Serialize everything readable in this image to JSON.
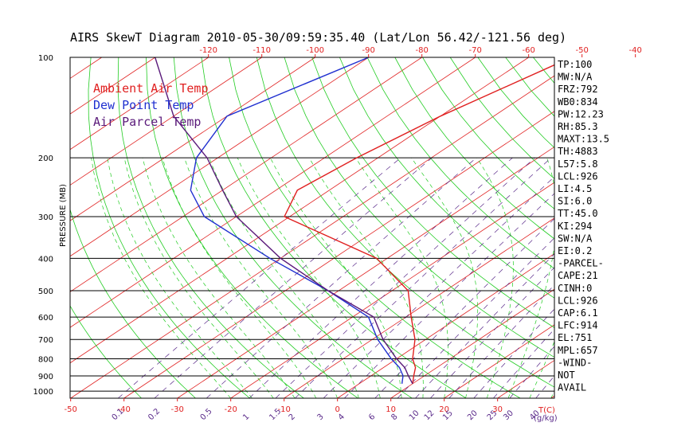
{
  "chart_data": {
    "type": "line",
    "title": "AIRS SkewT Diagram 2010-05-30/09:59:35.40 (Lat/Lon 56.42/-121.56 deg)",
    "ylabel": "PRESSURE (MB)",
    "xlabel_bottom": "T(C)",
    "xlabel_mixing": "(g/kg)",
    "pressure_ticks": [
      "100",
      "200",
      "300",
      "400",
      "500",
      "600",
      "700",
      "800",
      "900",
      "1000"
    ],
    "top_temp_ticks": [
      "-120",
      "-110",
      "-100",
      "-90",
      "-80",
      "-70",
      "-60",
      "-50",
      "-40"
    ],
    "bottom_temp_ticks": [
      "-50",
      "-40",
      "-30",
      "-20",
      "-10",
      "0",
      "10",
      "20",
      "30"
    ],
    "mixing_ratio_labels": [
      "0.1",
      "0.2",
      "0.5",
      "1",
      "1.5",
      "2",
      "3",
      "4",
      "6",
      "8",
      "10",
      "12",
      "15",
      "20",
      "25",
      "30",
      "40"
    ],
    "legend": [
      {
        "name": "Ambient Air Temp",
        "color": "#e02020"
      },
      {
        "name": "Dew Point Temp",
        "color": "#2030d0"
      },
      {
        "name": "Air Parcel Temp",
        "color": "#5a1a7a"
      }
    ],
    "series": [
      {
        "name": "Ambient Air Temp",
        "color": "#e02020",
        "points": [
          [
            100,
            -52
          ],
          [
            150,
            -60
          ],
          [
            200,
            -64
          ],
          [
            250,
            -66
          ],
          [
            300,
            -61
          ],
          [
            400,
            -32
          ],
          [
            500,
            -17
          ],
          [
            600,
            -9
          ],
          [
            700,
            -2
          ],
          [
            800,
            3
          ],
          [
            850,
            6
          ],
          [
            900,
            8
          ],
          [
            950,
            10
          ]
        ]
      },
      {
        "name": "Dew Point Temp",
        "color": "#2030d0",
        "points": [
          [
            100,
            -90
          ],
          [
            150,
            -100
          ],
          [
            200,
            -94
          ],
          [
            250,
            -86
          ],
          [
            300,
            -76
          ],
          [
            400,
            -52
          ],
          [
            500,
            -32
          ],
          [
            600,
            -17
          ],
          [
            700,
            -9
          ],
          [
            800,
            -1
          ],
          [
            850,
            3
          ],
          [
            900,
            6
          ],
          [
            950,
            8
          ]
        ]
      },
      {
        "name": "Air Parcel Temp",
        "color": "#5a1a7a",
        "points": [
          [
            100,
            -130
          ],
          [
            150,
            -110
          ],
          [
            200,
            -92
          ],
          [
            250,
            -80
          ],
          [
            300,
            -70
          ],
          [
            400,
            -50
          ],
          [
            500,
            -32
          ],
          [
            600,
            -16
          ],
          [
            700,
            -8
          ],
          [
            800,
            0
          ],
          [
            850,
            4
          ],
          [
            900,
            7
          ],
          [
            950,
            10
          ]
        ]
      }
    ],
    "side_panel": [
      "TP:100",
      "MW:N/A",
      "FRZ:792",
      "WB0:834",
      "PW:12.23",
      "RH:85.3",
      "MAXT:13.5",
      "TH:4883",
      "L57:5.8",
      "LCL:926",
      "LI:4.5",
      "SI:6.0",
      "TT:45.0",
      "KI:294",
      "SW:N/A",
      "EI:0.2",
      "-PARCEL-",
      "CAPE:21",
      "CINH:0",
      "LCL:926",
      "CAP:6.1",
      "LFC:914",
      "EL:751",
      "MPL:657",
      "-WIND-",
      "NOT",
      "AVAIL"
    ],
    "colors": {
      "isotherm": "#e02020",
      "dry_adiabat": "#22cc22",
      "moist_adiabat": "#22cc22",
      "mixing_ratio": "#5a2a8a",
      "isobar": "#000000"
    }
  }
}
